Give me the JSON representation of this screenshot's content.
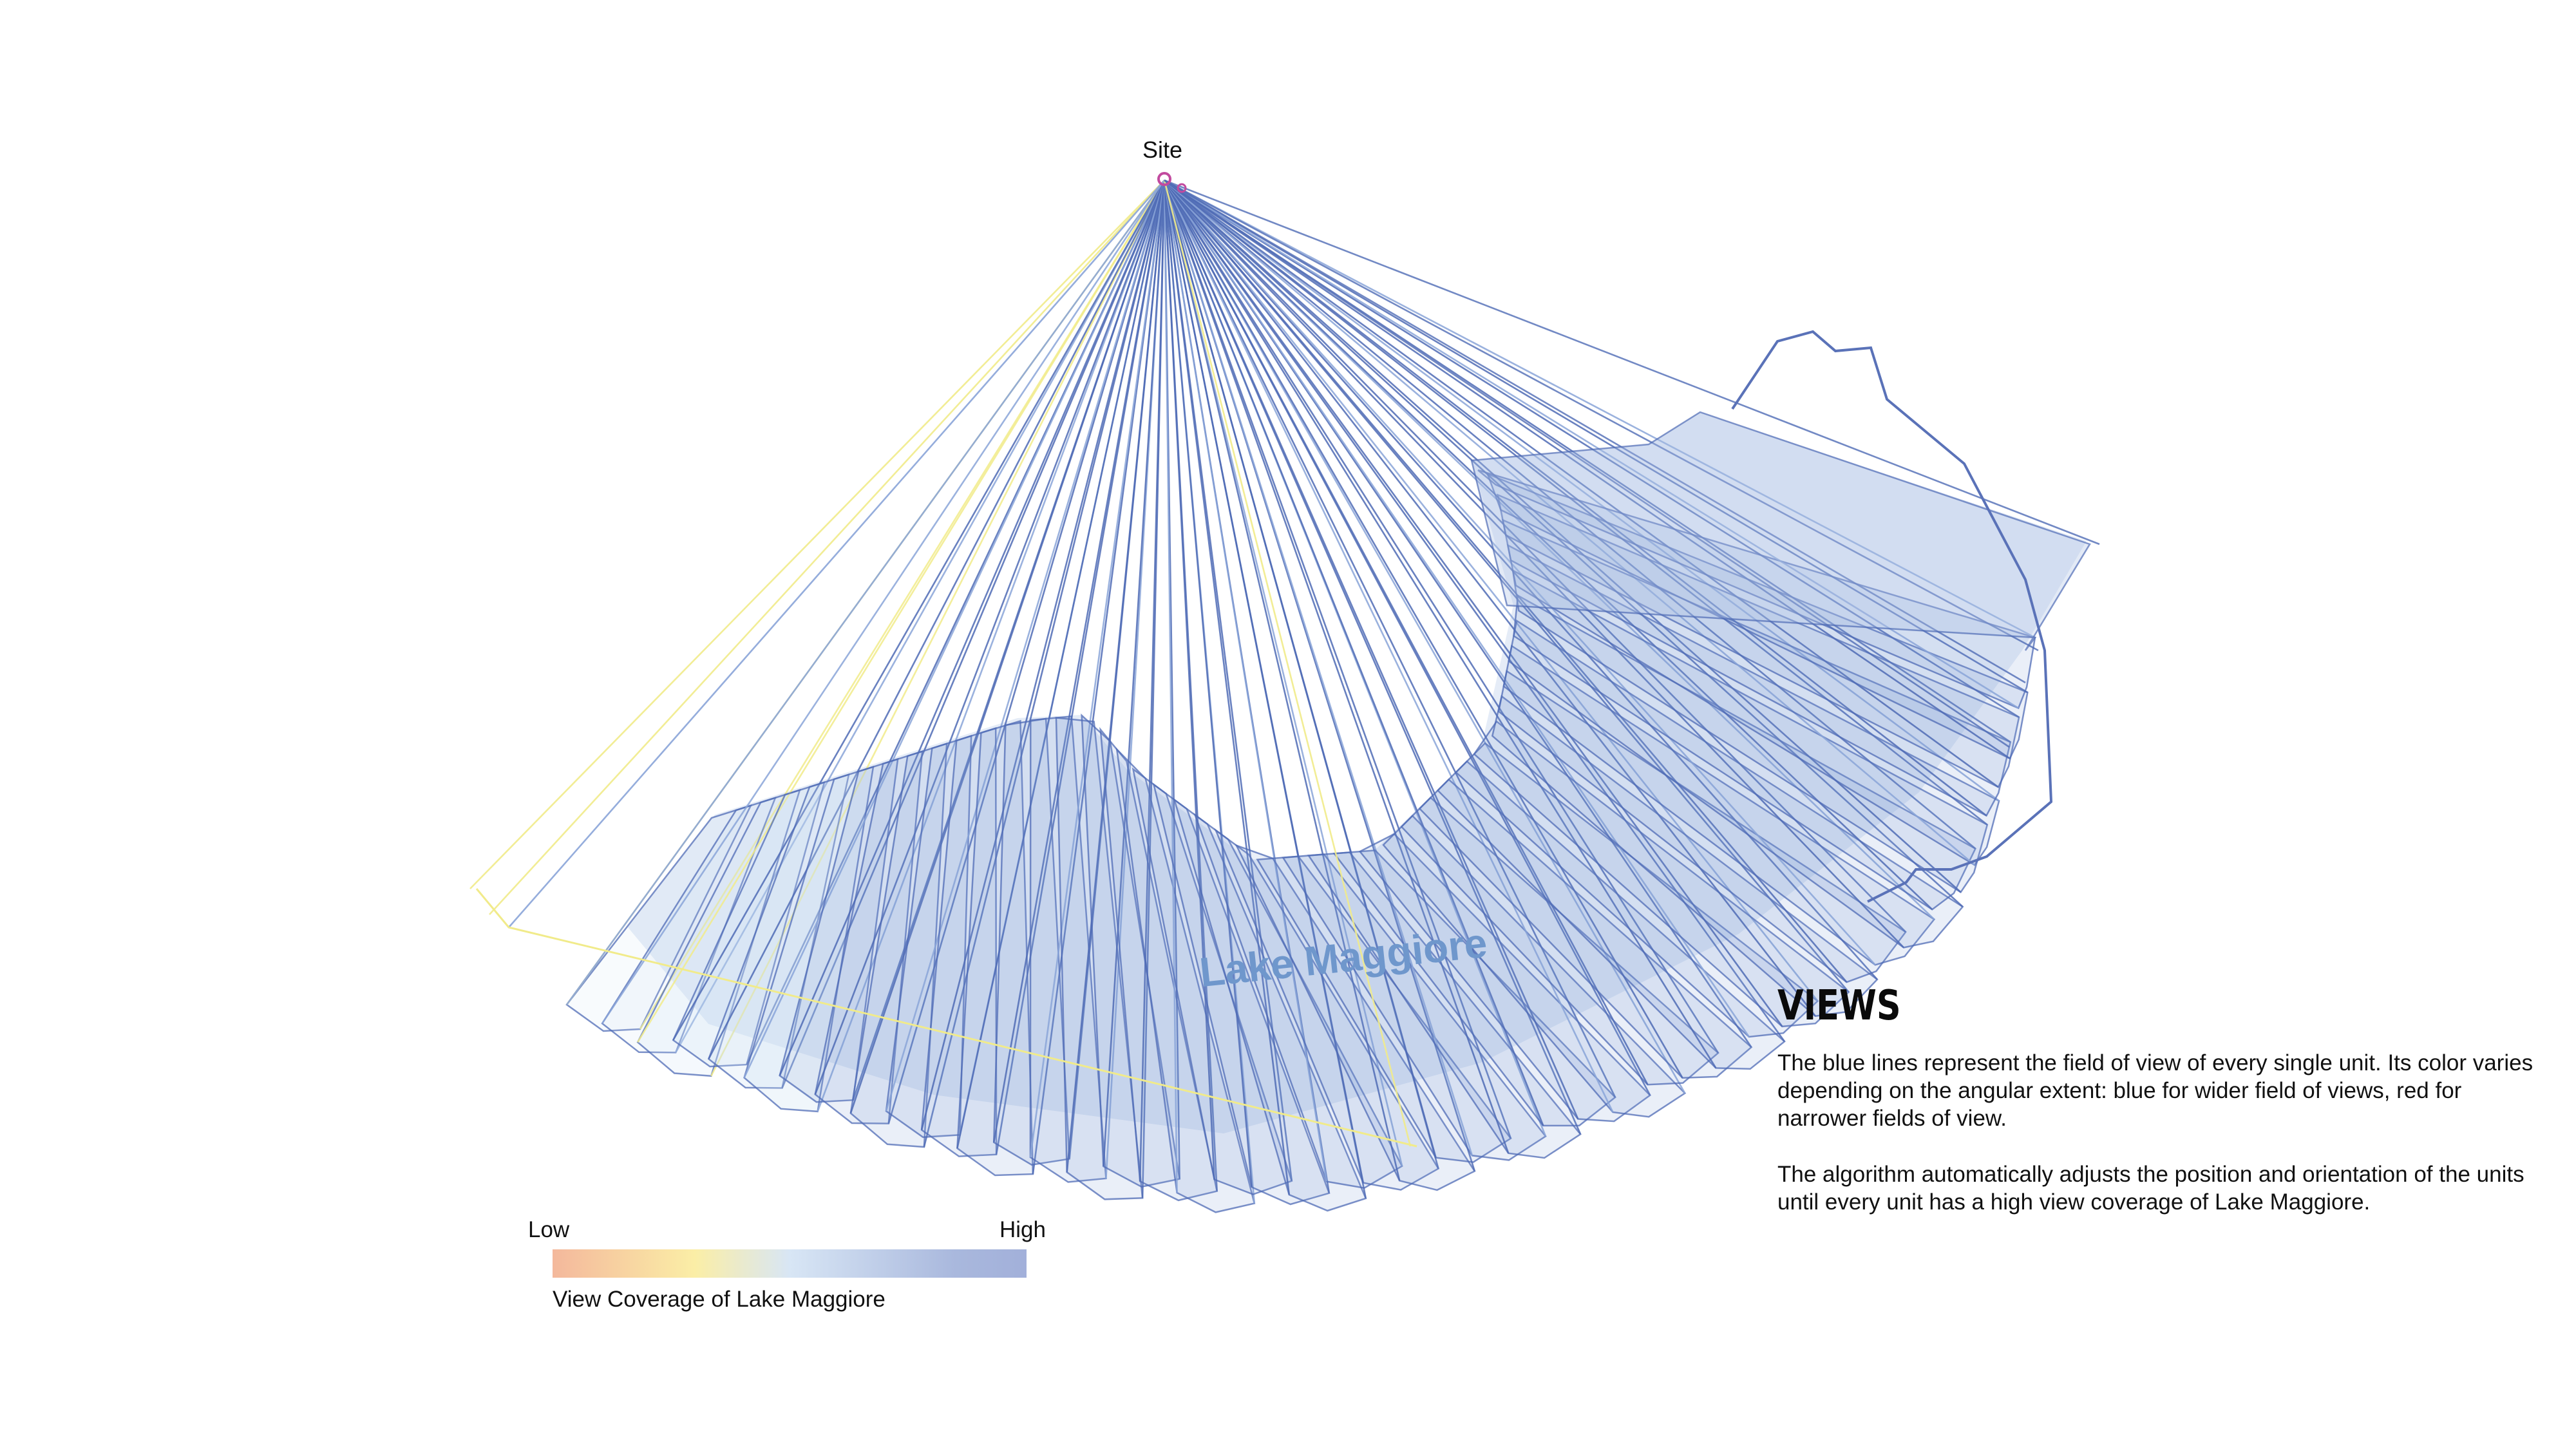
{
  "site_label": "Site",
  "lake_label": "Lake Maggiore",
  "views": {
    "title": "VIEWS",
    "paragraph_1": "The blue lines represent the field of view of every single unit. Its color varies depending on the angular extent: blue for wider field of views, red for narrower fields of view.",
    "paragraph_2": "The algorithm automatically adjusts the position and orientation of the units until every unit has a high view coverage of Lake Maggiore."
  },
  "legend": {
    "low_label": "Low",
    "high_label": "High",
    "caption": "View Coverage of Lake Maggiore",
    "gradient_colors": [
      "#f4b89c",
      "#fbeea6",
      "#d8e6f5",
      "#a9b8dd",
      "#a2b0da"
    ]
  },
  "colors": {
    "view_line_blue": "#4f6bb5",
    "view_line_light": "#8aa4d8",
    "view_line_yellow": "#f1eb8a",
    "lake_fill": "#7f9bd6",
    "lake_label": "#6f97cc",
    "site_marker": "#c24a9f"
  }
}
